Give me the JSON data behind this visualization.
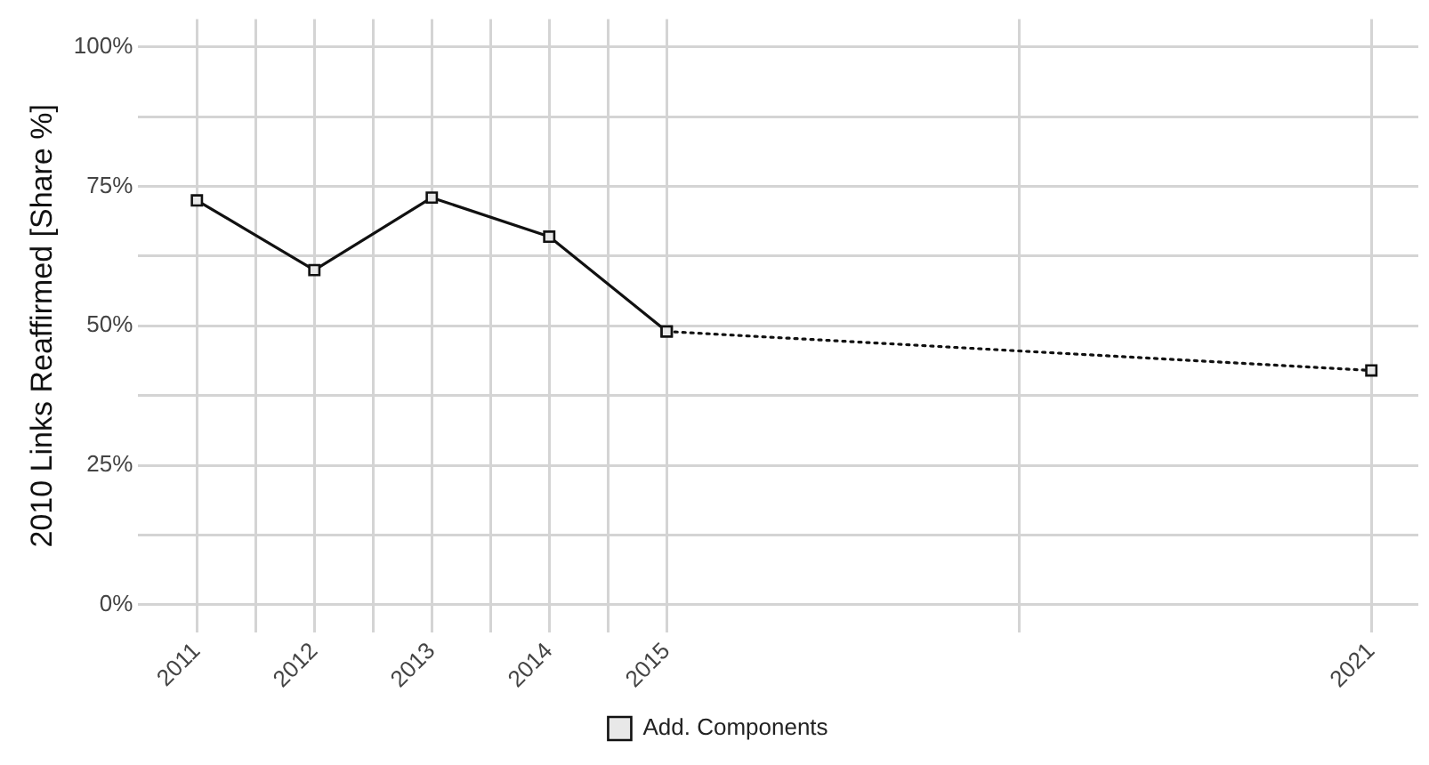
{
  "chart_data": {
    "type": "line",
    "ylabel": "2010 Links Reaffirmed [Share %]",
    "xlim": [
      2010.5,
      2021.4
    ],
    "xticks": [
      2011,
      {
        "value": 2011.5,
        "label": null
      },
      2012,
      {
        "value": 2012.5,
        "label": null
      },
      2013,
      {
        "value": 2013.5,
        "label": null
      },
      2014,
      {
        "value": 2014.5,
        "label": null
      },
      2015,
      {
        "value": 2018,
        "label": null
      },
      2021
    ],
    "ylim": [
      -5,
      105
    ],
    "yticks": [
      {
        "value": 0,
        "label": "0%"
      },
      {
        "value": 12.5,
        "label": null
      },
      {
        "value": 25,
        "label": "25%"
      },
      {
        "value": 37.5,
        "label": null
      },
      {
        "value": 50,
        "label": "50%"
      },
      {
        "value": 62.5,
        "label": null
      },
      {
        "value": 75,
        "label": "75%"
      },
      {
        "value": 87.5,
        "label": null
      },
      {
        "value": 100,
        "label": "100%"
      }
    ],
    "grid": true,
    "legend": "bottom",
    "marker": "square",
    "series": [
      {
        "name": "Add. Components",
        "color": "#111111",
        "x": [
          2011,
          2012,
          2013,
          2014,
          2015
        ],
        "values": [
          72.5,
          60,
          73,
          66,
          49
        ],
        "line_style": "solid"
      },
      {
        "color": "#111111",
        "x": [
          2015,
          2021
        ],
        "values": [
          49,
          42
        ],
        "line_style": "dotted"
      }
    ]
  }
}
